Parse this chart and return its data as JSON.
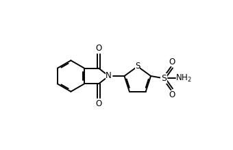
{
  "bg_color": "#ffffff",
  "line_color": "#000000",
  "lw": 1.4,
  "fs": 8.5,
  "figsize": [
    3.4,
    2.19
  ],
  "dpi": 100,
  "xlim": [
    0,
    3.4
  ],
  "ylim": [
    0,
    2.19
  ]
}
